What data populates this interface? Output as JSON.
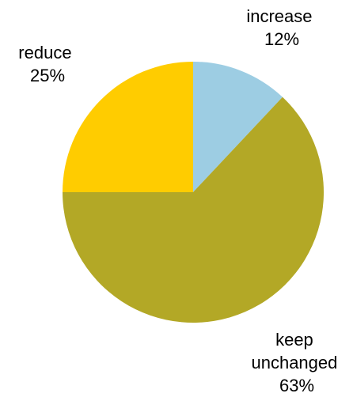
{
  "chart_data": {
    "type": "pie",
    "start_angle_deg": 0,
    "direction": "clockwise",
    "slices": [
      {
        "label": "increase",
        "percent_label": "12%",
        "value": 12,
        "color": "#9DCDE3"
      },
      {
        "label": "keep unchanged",
        "percent_label": "63%",
        "value": 63,
        "color": "#B3A826"
      },
      {
        "label": "reduce",
        "percent_label": "25%",
        "value": 25,
        "color": "#FFCC00"
      }
    ]
  }
}
